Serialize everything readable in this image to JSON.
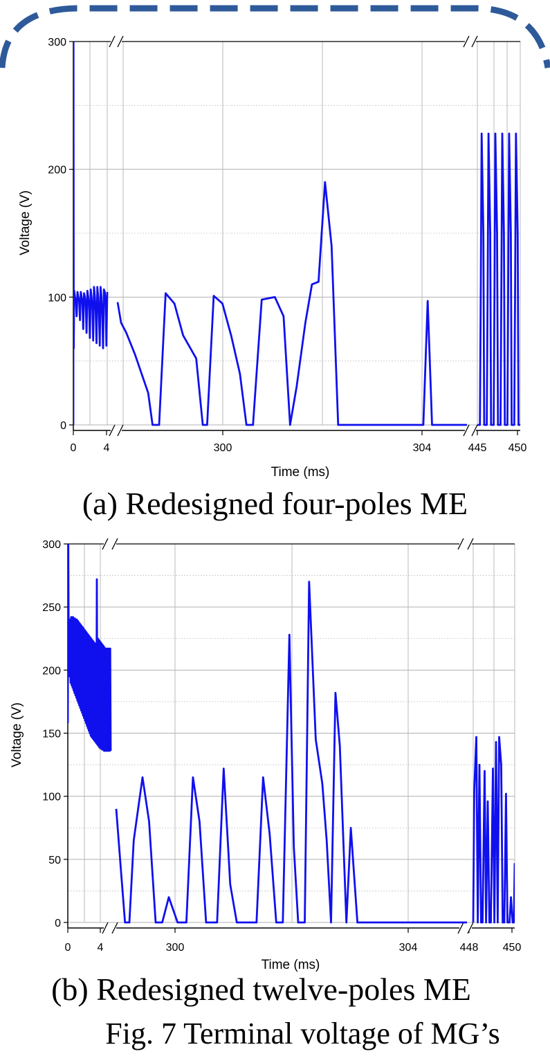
{
  "colors": {
    "series": "#1010ee",
    "frame": "#2e5a9a"
  },
  "chart_data": [
    {
      "type": "line",
      "caption": "(a) Redesigned four-poles ME",
      "xlabel": "Time (ms)",
      "ylabel": "Voltage (V)",
      "ylim": [
        0,
        300
      ],
      "yticks": [
        0,
        100,
        200,
        300
      ],
      "xticks": [
        "0",
        "4",
        "300",
        "304",
        "445",
        "450"
      ],
      "grid": true,
      "axis_breaks": [
        "between 4 and 300 ms",
        "between 304 and 445 ms"
      ],
      "series": [
        {
          "segments": [
            {
              "x": [
                0,
                0.02,
                0.05,
                0.1,
                0.2,
                0.3,
                0.4,
                0.5,
                0.6,
                0.7,
                0.8,
                0.9,
                1.0,
                1.1,
                1.2,
                1.3,
                1.4,
                1.5,
                1.6,
                1.7,
                1.8,
                1.9,
                2.0,
                2.1,
                2.2,
                2.3,
                2.4,
                2.5,
                2.6,
                2.7,
                2.8,
                2.9,
                3.0,
                3.1,
                3.2,
                3.3,
                3.4,
                3.5,
                3.6,
                3.7,
                3.8,
                3.9,
                4.0,
                4.1
              ],
              "y": [
                0,
                300,
                60,
                105,
                100,
                98,
                85,
                104,
                100,
                97,
                82,
                104,
                100,
                97,
                75,
                103,
                100,
                95,
                72,
                105,
                100,
                94,
                68,
                106,
                100,
                92,
                66,
                108,
                100,
                90,
                64,
                108,
                100,
                88,
                62,
                108,
                100,
                86,
                60,
                106,
                104,
                98,
                62,
                104
              ]
            },
            {
              "x": [
                296.0,
                296.08,
                296.2,
                296.4,
                296.6,
                296.7,
                296.8,
                296.95,
                297.1,
                297.3,
                297.5,
                297.8,
                297.95,
                298.05,
                298.2,
                298.4,
                298.6,
                298.8,
                298.95,
                299.1,
                299.3,
                299.6,
                299.8,
                299.95,
                300.1,
                300.3,
                300.45,
                300.6,
                300.75,
                300.9,
                301.05,
                301.2,
                301.35,
                301.5,
                301.65,
                301.85,
                302.0,
                302.2,
                302.4,
                302.6,
                302.8,
                303.0,
                303.1,
                303.2,
                303.3,
                304.0
              ],
              "y": [
                96,
                80,
                72,
                55,
                35,
                25,
                0,
                0,
                103,
                95,
                70,
                52,
                0,
                0,
                101,
                95,
                70,
                40,
                0,
                0,
                98,
                100,
                85,
                0,
                30,
                80,
                110,
                112,
                190,
                140,
                0,
                0,
                0,
                0,
                0,
                0,
                0,
                0,
                0,
                0,
                0,
                0,
                97,
                0,
                0,
                0
              ]
            },
            {
              "x": [
                445.0,
                445.3,
                445.4,
                445.5,
                445.7,
                445.8,
                446.1,
                446.2,
                446.3,
                446.5,
                446.6,
                446.9,
                447.0,
                447.1,
                447.3,
                447.4,
                447.7,
                447.8,
                447.9,
                448.1,
                448.2,
                448.5,
                448.6,
                448.7,
                448.9,
                449.0,
                449.3,
                449.4,
                449.5,
                449.7,
                449.8,
                450.0
              ],
              "y": [
                0,
                0,
                110,
                228,
                150,
                0,
                0,
                110,
                228,
                150,
                0,
                0,
                110,
                228,
                150,
                0,
                0,
                110,
                228,
                150,
                0,
                0,
                110,
                228,
                150,
                0,
                0,
                110,
                228,
                150,
                0,
                0
              ]
            }
          ]
        }
      ]
    },
    {
      "type": "line",
      "caption": "(b) Redesigned twelve-poles ME",
      "xlabel": "Time (ms)",
      "ylabel": "Voltage (V)",
      "ylim": [
        0,
        300
      ],
      "yticks": [
        0,
        50,
        100,
        150,
        200,
        250,
        300
      ],
      "xticks": [
        "0",
        "4",
        "300",
        "304",
        "448",
        "450"
      ],
      "grid": true,
      "axis_breaks": [
        "between 4 and 300 ms",
        "between 304 and 448 ms"
      ],
      "series": [
        {
          "segments": [
            {
              "x": [
                0,
                0.05,
                0.1,
                0.15,
                0.2,
                0.25,
                0.3,
                0.35,
                0.4,
                0.45,
                0.5,
                0.55,
                0.6,
                0.65,
                0.7,
                0.75,
                0.8,
                0.85,
                0.9,
                0.95,
                1.0,
                1.05,
                1.1,
                1.15,
                1.2,
                1.25,
                1.3,
                1.35,
                1.4,
                1.45,
                1.5,
                1.55,
                1.6,
                1.65,
                1.7,
                1.75,
                1.8,
                1.85,
                1.9,
                1.95,
                2.0,
                2.05,
                2.1,
                2.15,
                2.2,
                2.25,
                2.3,
                2.35,
                2.4,
                2.45,
                2.5,
                2.55,
                2.6,
                2.65,
                2.7,
                2.75,
                2.8,
                2.85,
                2.9,
                2.95,
                3.0,
                3.05,
                3.1,
                3.15,
                3.2,
                3.25,
                3.3,
                3.35,
                3.4,
                3.45,
                3.5,
                3.55,
                3.6,
                3.65,
                3.7,
                3.75,
                3.8,
                3.85,
                3.9,
                3.95,
                4.0,
                4.05,
                4.1,
                4.15,
                4.2,
                4.25,
                4.3,
                4.35,
                4.4,
                4.45,
                4.5
              ],
              "y": [
                158,
                300,
                200,
                240,
                195,
                240,
                190,
                242,
                188,
                242,
                186,
                242,
                184,
                241,
                182,
                241,
                180,
                240,
                178,
                240,
                176,
                239,
                174,
                238,
                172,
                237,
                170,
                236,
                168,
                235,
                166,
                234,
                164,
                233,
                162,
                232,
                160,
                231,
                158,
                230,
                156,
                229,
                154,
                228,
                152,
                227,
                150,
                226,
                148,
                225,
                147,
                224,
                146,
                223,
                145,
                222,
                144,
                221,
                143,
                220,
                142,
                272,
                141,
                225,
                140,
                224,
                139,
                223,
                138,
                222,
                138,
                221,
                137,
                220,
                137,
                219,
                136,
                218,
                136,
                217,
                136,
                217,
                136,
                217,
                136,
                217,
                136,
                217,
                136,
                217,
                136
              ]
            },
            {
              "x": [
                296.0,
                296.1,
                296.2,
                296.3,
                296.4,
                296.6,
                296.75,
                296.9,
                297.05,
                297.2,
                297.4,
                297.5,
                297.6,
                297.75,
                297.9,
                298.05,
                298.2,
                298.3,
                298.45,
                298.6,
                298.75,
                298.9,
                299.05,
                299.2,
                299.35,
                299.5,
                299.65,
                299.8,
                299.95,
                300.05,
                300.15,
                300.3,
                300.4,
                300.55,
                300.7,
                300.8,
                300.9,
                301.0,
                301.1,
                301.25,
                301.35,
                301.5,
                301.7,
                302.0,
                302.5,
                303.0,
                303.5,
                304.0
              ],
              "y": [
                90,
                45,
                0,
                0,
                65,
                115,
                80,
                0,
                0,
                20,
                0,
                0,
                0,
                115,
                80,
                0,
                0,
                0,
                122,
                30,
                0,
                0,
                0,
                0,
                115,
                70,
                0,
                0,
                228,
                60,
                0,
                0,
                270,
                145,
                110,
                65,
                0,
                182,
                140,
                0,
                75,
                0,
                0,
                0,
                0,
                0,
                0,
                0
              ]
            },
            {
              "x": [
                448.0,
                448.05,
                448.15,
                448.22,
                448.3,
                448.38,
                448.45,
                448.55,
                448.62,
                448.7,
                448.78,
                448.85,
                448.95,
                449.02,
                449.1,
                449.18,
                449.25,
                449.35,
                449.42,
                449.5,
                449.58,
                449.65,
                449.75,
                449.82,
                449.9,
                449.96,
                450.0
              ],
              "y": [
                0,
                105,
                147,
                0,
                125,
                0,
                0,
                120,
                0,
                96,
                0,
                0,
                122,
                0,
                143,
                0,
                147,
                125,
                0,
                0,
                102,
                0,
                0,
                20,
                0,
                0,
                47
              ]
            }
          ]
        }
      ]
    }
  ],
  "captions": {
    "fig": "Fig. 7 Terminal voltage of MG’s"
  }
}
